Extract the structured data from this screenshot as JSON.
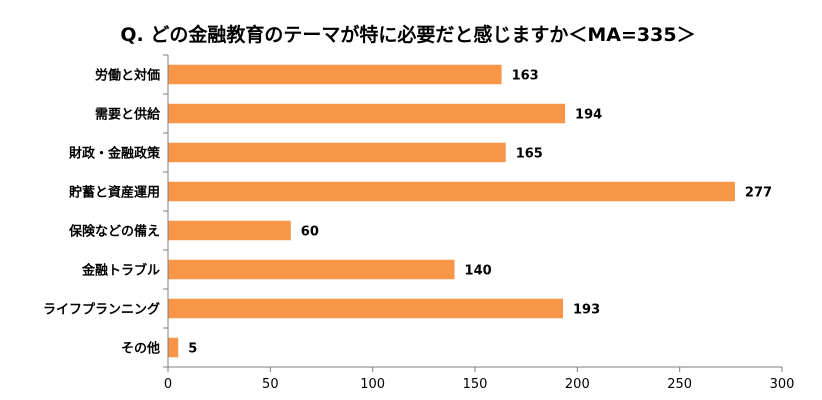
{
  "chart_data": {
    "type": "bar",
    "orientation": "horizontal",
    "title": "Q. どの金融教育のテーマが特に必要だと感じますか＜MA=335＞",
    "categories": [
      "労働と対価",
      "需要と供給",
      "財政・金融政策",
      "貯蓄と資産運用",
      "保険などの備え",
      "金融トラブル",
      "ライフプランニング",
      "その他"
    ],
    "values": [
      163,
      194,
      165,
      277,
      60,
      140,
      193,
      5
    ],
    "xlim": [
      0,
      300
    ],
    "xticks": [
      "0",
      "50",
      "100",
      "150",
      "200",
      "250",
      "300"
    ],
    "xlabel": "",
    "ylabel": "",
    "grid": false,
    "legend": "none",
    "bar_color": "#F79646"
  }
}
